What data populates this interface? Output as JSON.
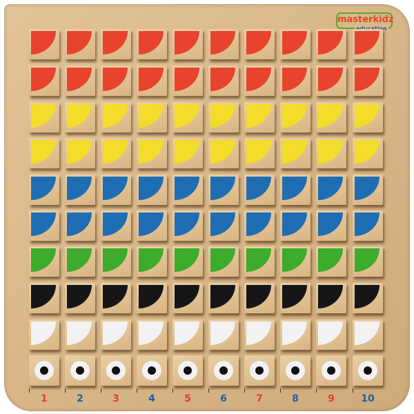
{
  "logo": {
    "brand": "masterkidz",
    "sub": "education"
  },
  "rows": [
    {
      "color": "red",
      "hex": "#e8432d"
    },
    {
      "color": "red",
      "hex": "#e8432d"
    },
    {
      "color": "yellow",
      "hex": "#f4dc2a"
    },
    {
      "color": "yellow",
      "hex": "#f4dc2a"
    },
    {
      "color": "blue",
      "hex": "#1f6db2"
    },
    {
      "color": "blue",
      "hex": "#1f6db2"
    },
    {
      "color": "green",
      "hex": "#3dab2b"
    },
    {
      "color": "black",
      "hex": "#161616"
    },
    {
      "color": "white",
      "hex": "#f2f2f2"
    },
    {
      "color": "eyes",
      "hex": "#f2f2f2"
    }
  ],
  "column_numbers": [
    "1",
    "2",
    "3",
    "4",
    "5",
    "6",
    "7",
    "8",
    "9",
    "10"
  ],
  "number_colors": {
    "odd": "#e0402c",
    "even": "#1f5fa8"
  }
}
